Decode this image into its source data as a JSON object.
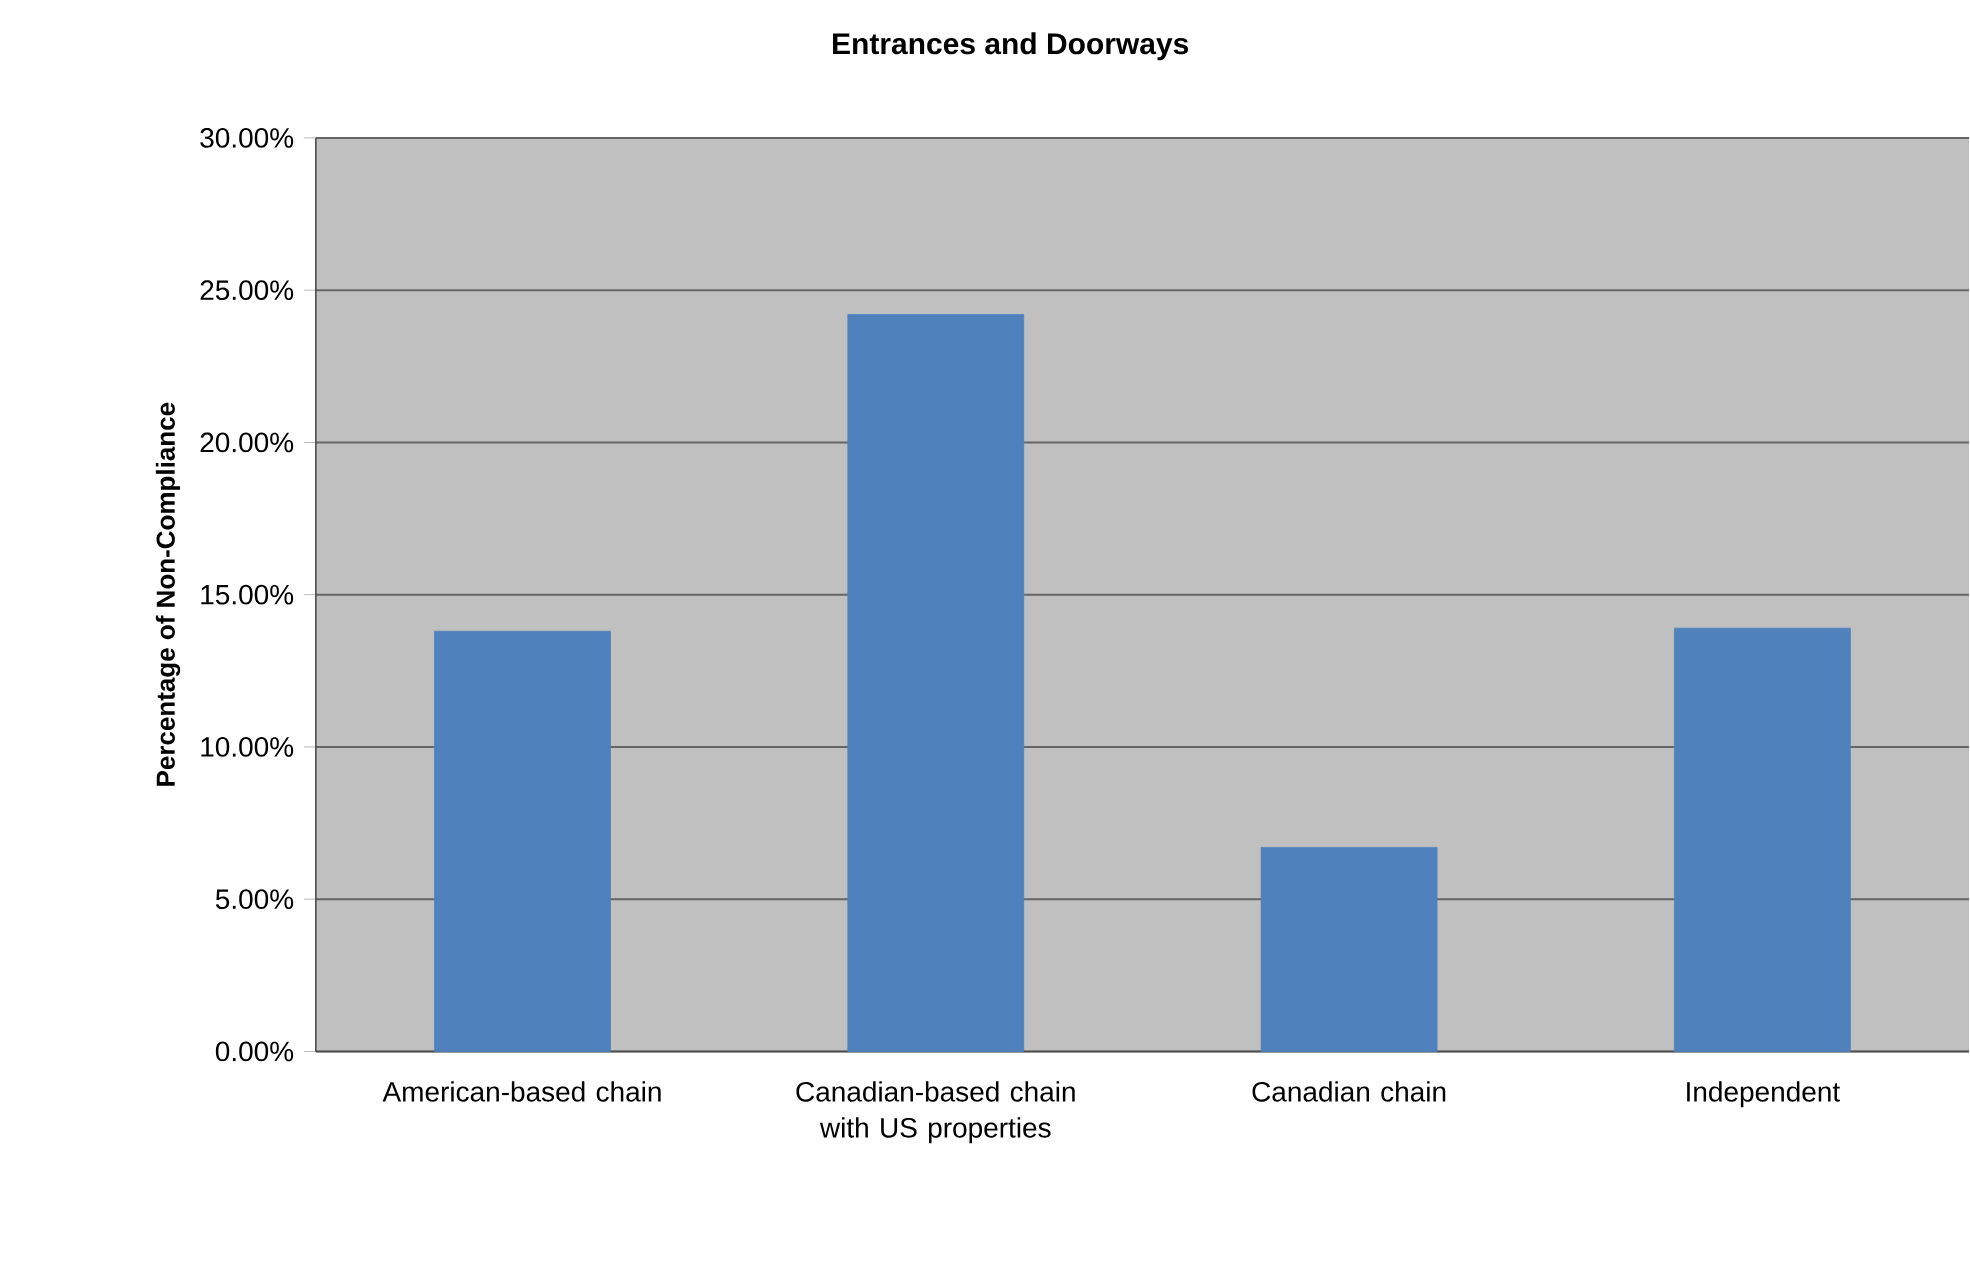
{
  "chart_data": {
    "type": "bar",
    "title": "Entrances and Doorways",
    "ylabel": "Percentage of Non-Compliance",
    "categories": [
      "American-based chain",
      "Canadian-based chain with US properties",
      "Canadian chain",
      "Independent"
    ],
    "values": [
      13.8,
      24.2,
      6.7,
      13.9
    ],
    "color": "#4f81bd",
    "ylim": [
      0,
      30
    ],
    "yticks": [
      {
        "value": 0,
        "label": "0.00%"
      },
      {
        "value": 5,
        "label": "5.00%"
      },
      {
        "value": 10,
        "label": "10.00%"
      },
      {
        "value": 15,
        "label": "15.00%"
      },
      {
        "value": 20,
        "label": "20.00%"
      },
      {
        "value": 25,
        "label": "25.00%"
      },
      {
        "value": 30,
        "label": "30.00%"
      }
    ],
    "grid": "y"
  }
}
